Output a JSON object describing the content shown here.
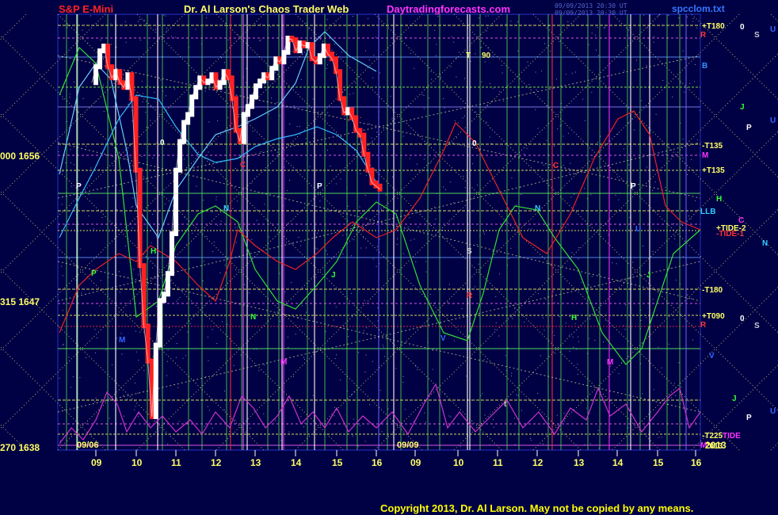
{
  "header": {
    "left_title": "S&P E-Mini",
    "center_title": "Dr. Al Larson's Chaos Trader Web",
    "site": "Daytradingforecasts.com",
    "right_file": "spcclom.txt",
    "stamp_line1": "09/09/2013 20:30 UT",
    "stamp_line2": "09/09/2013 20:30 UT",
    "colors": {
      "left_title": "#ff2222",
      "center_title": "#ffff66",
      "site": "#ff33ff",
      "right_file": "#3377ff"
    }
  },
  "footer": {
    "copyright": "Copyright 2013, Dr. Al Larson. May not be copied by any means."
  },
  "chart_data": {
    "type": "line",
    "title": "S&P E-Mini",
    "y_axis": {
      "labels": [
        {
          "text": "000 1656",
          "value": 1656
        },
        {
          "text": "315 1647",
          "value": 1647
        },
        {
          "text": "270 1638",
          "value": 1638
        }
      ],
      "ylim": [
        1637.4,
        1664.8
      ]
    },
    "x_axis": {
      "hour_ticks": [
        "09",
        "10",
        "11",
        "12",
        "13",
        "14",
        "15",
        "16",
        "09",
        "10",
        "11",
        "12",
        "13",
        "14",
        "15",
        "16"
      ],
      "day_labels": [
        {
          "text": "09/06",
          "after_tick": 0
        },
        {
          "text": "09/09",
          "after_tick": 8
        }
      ],
      "year_label": "2013"
    },
    "series": [
      {
        "name": "price",
        "color": "#ffffff",
        "down_color": "#ff2222",
        "x": [
          8.9,
          9.0,
          9.1,
          9.2,
          9.3,
          9.4,
          9.5,
          9.6,
          9.7,
          9.8,
          9.9,
          10.0,
          10.1,
          10.2,
          10.3,
          10.4,
          10.5,
          10.6,
          10.7,
          10.8,
          10.9,
          11.0,
          11.1,
          11.2,
          11.3,
          11.4,
          11.5,
          11.6,
          11.7,
          11.8,
          11.9,
          12.0,
          12.1,
          12.2,
          12.3,
          12.4,
          12.5,
          12.6,
          12.7,
          12.8,
          12.9,
          13.0,
          13.1,
          13.2,
          13.3,
          13.4,
          13.5,
          13.6,
          13.7,
          13.8,
          13.9,
          14.0,
          14.1,
          14.2,
          14.3,
          14.4,
          14.5,
          14.6,
          14.7,
          14.8,
          14.9,
          15.0,
          15.1,
          15.2,
          15.3,
          15.4,
          15.5,
          15.6,
          15.7,
          15.8,
          15.9,
          16.0,
          16.1
        ],
        "y": [
          1660.5,
          1661.5,
          1662.5,
          1662.8,
          1661.5,
          1660.8,
          1661.2,
          1660.5,
          1660.2,
          1661.0,
          1659.5,
          1655.0,
          1649.0,
          1645.2,
          1643.0,
          1639.5,
          1644.0,
          1646.8,
          1647.2,
          1648.5,
          1651.0,
          1655.0,
          1656.8,
          1658.0,
          1658.5,
          1659.6,
          1660.2,
          1660.8,
          1660.5,
          1660.6,
          1661.0,
          1660.2,
          1660.5,
          1661.2,
          1660.8,
          1659.5,
          1657.5,
          1656.8,
          1658.5,
          1659.0,
          1659.6,
          1660.3,
          1660.6,
          1661.0,
          1660.8,
          1661.4,
          1662.0,
          1661.8,
          1662.4,
          1663.3,
          1663.2,
          1662.5,
          1663.0,
          1662.8,
          1662.9,
          1662.0,
          1661.8,
          1662.2,
          1662.8,
          1662.3,
          1662.0,
          1661.2,
          1659.5,
          1658.6,
          1658.8,
          1658.3,
          1657.5,
          1657.2,
          1656.0,
          1655.0,
          1654.2,
          1654.0,
          1653.8
        ]
      }
    ],
    "annotations": [
      "+T180",
      "R",
      "0",
      "S",
      "U",
      "B",
      "J",
      "P",
      "U",
      "-T135",
      "M",
      "+T135",
      "H",
      "LLB",
      "C",
      "+TIDE-2",
      "-TIDE-1",
      "N",
      "-T180",
      "+T090",
      "0",
      "S",
      "R",
      "V",
      "J",
      "P",
      "U",
      "-T225",
      "TIDE",
      "M",
      "2013",
      "T",
      "90",
      "0",
      "P",
      "P",
      "C",
      "N",
      "N",
      "C",
      "M",
      "M",
      "H",
      "J",
      "V",
      "S",
      "R",
      "t",
      "0",
      "P",
      "P",
      "U",
      "N",
      "M",
      "H",
      "J"
    ],
    "grid": true,
    "legend": "none"
  }
}
